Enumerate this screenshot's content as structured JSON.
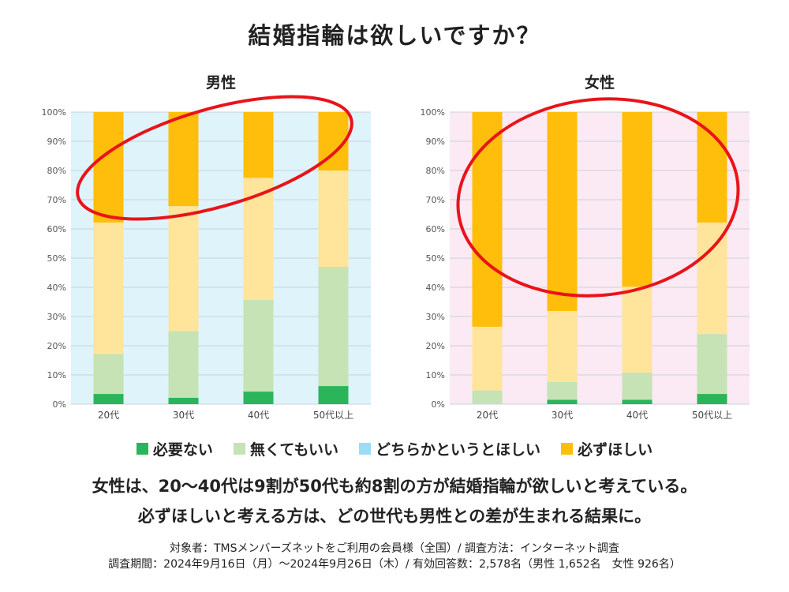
{
  "title": "結婚指輪は欲しいですか？",
  "colors": {
    "必要ない": "#2bb55b",
    "無くてもいい": "#c5e3b4",
    "どちらかというとほしい": "#ffe49c",
    "必ずほしい": "#ffbe0b",
    "legend_どちらかというとほしい": "#9ddcf5",
    "male_bg": "#dff3fb",
    "female_bg": "#fbe9f3",
    "highlight": "#e8141a"
  },
  "legend": {
    "items": [
      {
        "label": "必要ない",
        "color": "#2bb55b"
      },
      {
        "label": "無くてもいい",
        "color": "#c5e3b4"
      },
      {
        "label": "どちらかというとほしい",
        "color": "#9ddcf5"
      },
      {
        "label": "必ずほしい",
        "color": "#ffbe0b"
      }
    ]
  },
  "chart_data": [
    {
      "type": "bar",
      "stacked": true,
      "title": "男性",
      "categories": [
        "20代",
        "30代",
        "40代",
        "50代以上"
      ],
      "ylim": [
        0,
        100
      ],
      "yticks": [
        "0%",
        "10%",
        "20%",
        "30%",
        "40%",
        "50%",
        "60%",
        "70%",
        "80%",
        "90%",
        "100%"
      ],
      "grid": true,
      "series": [
        {
          "name": "必要ない",
          "values": [
            3.5,
            2.2,
            4.3,
            6.2
          ]
        },
        {
          "name": "無くてもいい",
          "values": [
            13.7,
            22.8,
            31.4,
            40.8
          ]
        },
        {
          "name": "どちらかというとほしい",
          "values": [
            45.0,
            42.8,
            41.8,
            33.0
          ]
        },
        {
          "name": "必ずほしい",
          "values": [
            37.8,
            32.2,
            22.5,
            20.0
          ]
        }
      ]
    },
    {
      "type": "bar",
      "stacked": true,
      "title": "女性",
      "categories": [
        "20代",
        "30代",
        "40代",
        "50代以上"
      ],
      "ylim": [
        0,
        100
      ],
      "yticks": [
        "0%",
        "10%",
        "20%",
        "30%",
        "40%",
        "50%",
        "60%",
        "70%",
        "80%",
        "90%",
        "100%"
      ],
      "grid": true,
      "series": [
        {
          "name": "必要ない",
          "values": [
            0.0,
            1.5,
            1.5,
            3.5
          ]
        },
        {
          "name": "無くてもいい",
          "values": [
            4.7,
            6.1,
            9.3,
            20.5
          ]
        },
        {
          "name": "どちらかというとほしい",
          "values": [
            21.8,
            24.3,
            29.4,
            38.2
          ]
        },
        {
          "name": "必ずほしい",
          "values": [
            73.5,
            68.1,
            59.8,
            37.8
          ]
        }
      ]
    }
  ],
  "summary": {
    "line1": "女性は、20〜40代は9割が50代も約8割の方が結婚指輪が欲しいと考えている。",
    "line2": "必ずほしいと考える方は、どの世代も男性との差が生まれる結果に。"
  },
  "footnote": {
    "line1": "対象者：TMSメンバーズネットをご利用の会員様（全国）/ 調査方法：インターネット調査",
    "line2": "調査期間：2024年9月16日（月）〜2024年9月26日（木）/ 有効回答数：2,578名（男性 1,652名　女性 926名）"
  }
}
